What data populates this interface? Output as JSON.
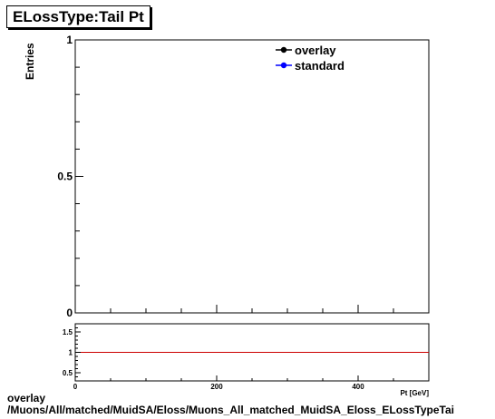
{
  "title": "ELossType:Tail Pt",
  "chart_data": [
    {
      "type": "line",
      "title": "ELossType:Tail Pt",
      "ylabel": "Entries",
      "xlabel": "Pt [GeV]",
      "xlim": [
        0,
        500
      ],
      "ylim": [
        0,
        1
      ],
      "x_ticks": [
        0,
        200,
        400
      ],
      "x_tick_labels": [
        "0",
        "200",
        "400"
      ],
      "y_ticks": [
        0,
        0.5,
        1
      ],
      "y_tick_labels": [
        "0",
        "0.5",
        "1"
      ],
      "grid": false,
      "legend_position": "top-right",
      "legend": [
        {
          "label": "overlay",
          "color": "#000000"
        },
        {
          "label": "standard",
          "color": "#0000ff"
        }
      ],
      "series": [
        {
          "name": "overlay",
          "color": "#000000",
          "x": [],
          "y": []
        },
        {
          "name": "standard",
          "color": "#0000ff",
          "x": [],
          "y": []
        }
      ]
    },
    {
      "type": "line",
      "xlim": [
        0,
        500
      ],
      "ylim": [
        0.3,
        1.7
      ],
      "x_ticks": [
        0,
        200,
        400
      ],
      "x_tick_labels": [
        "0",
        "200",
        "400"
      ],
      "y_ticks": [
        0.5,
        1,
        1.5
      ],
      "y_tick_labels": [
        "0.5",
        "1",
        "1.5"
      ],
      "reference_line": {
        "y": 1,
        "color": "#cc0000"
      }
    }
  ],
  "footer": {
    "line1": "overlay",
    "line2": "/Muons/All/matched/MuidSA/Eloss/Muons_All_matched_MuidSA_Eloss_ELossTypeTai"
  }
}
